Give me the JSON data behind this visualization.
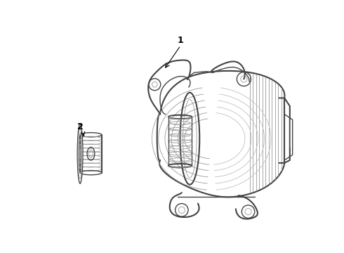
{
  "background_color": "#ffffff",
  "line_color": "#c0c0c0",
  "mid_line_color": "#999999",
  "dark_line_color": "#444444",
  "label1": "1",
  "label2": "2",
  "figsize": [
    4.9,
    3.6
  ],
  "dpi": 100,
  "lw_outer": 1.5,
  "lw_mid": 1.0,
  "lw_thin": 0.6
}
